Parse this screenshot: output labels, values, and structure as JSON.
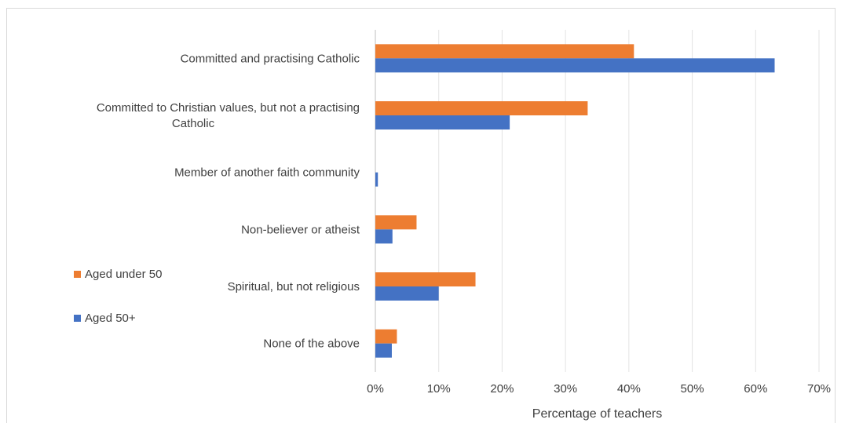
{
  "chart_data": {
    "type": "bar",
    "orientation": "horizontal",
    "categories": [
      "Committed and practising Catholic",
      "Committed to Christian values, but not a practising Catholic",
      "Member of another faith community",
      "Non-believer or atheist",
      "Spiritual, but not religious",
      "None of the above"
    ],
    "category_lines": [
      [
        "Committed and practising Catholic"
      ],
      [
        "Committed to Christian values, but not a practising",
        "Catholic"
      ],
      [
        "Member of another faith community"
      ],
      [
        "Non-believer or atheist"
      ],
      [
        "Spiritual, but not religious"
      ],
      [
        "None of the above"
      ]
    ],
    "series": [
      {
        "name": "Aged under 50",
        "color": "#ED7D31",
        "values": [
          40.8,
          33.5,
          0,
          6.5,
          15.8,
          3.4
        ]
      },
      {
        "name": "Aged 50+",
        "color": "#4472C4",
        "values": [
          63,
          21.2,
          0.4,
          2.7,
          10,
          2.6
        ]
      }
    ],
    "xlabel": "Percentage of teachers",
    "ylabel": "",
    "xlim": [
      0,
      70
    ],
    "ticks": [
      "0%",
      "10%",
      "20%",
      "30%",
      "40%",
      "50%",
      "60%",
      "70%"
    ],
    "grid": true,
    "legend": "left"
  }
}
